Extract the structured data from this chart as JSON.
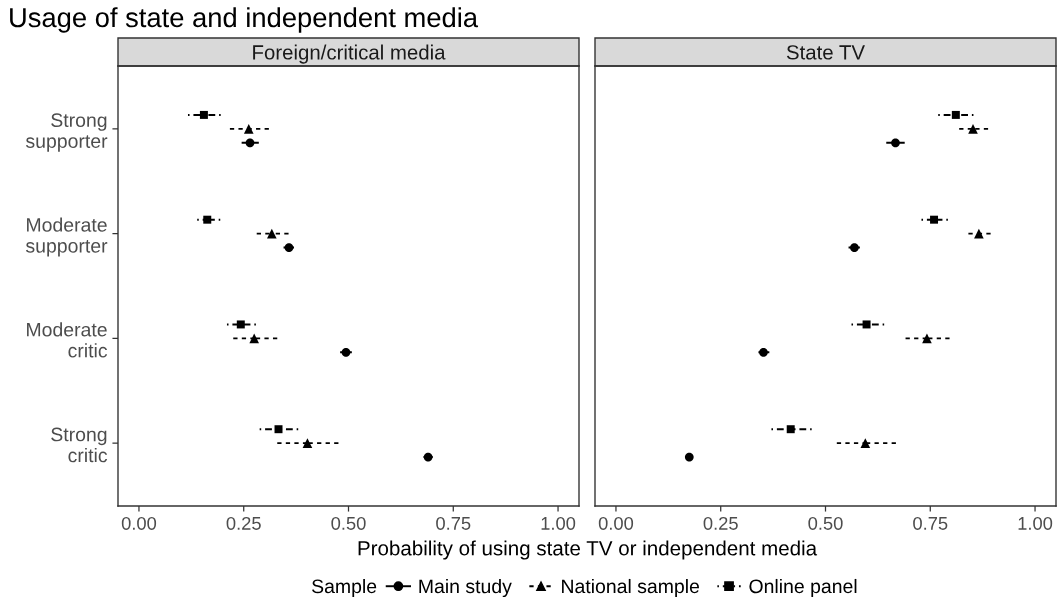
{
  "chart_data": [
    {
      "type": "scatter",
      "orientation": "horizontal",
      "title": "Usage of state and independent media",
      "subtitle": "Foreign/critical media",
      "xlabel": "Probability of using state TV or independent media",
      "legend_title": "Sample",
      "legend": "bottom",
      "categories": [
        "Strong\nsupporter",
        "Moderate\nsupporter",
        "Moderate\ncritic",
        "Strong\ncritic"
      ],
      "xlim": [
        -0.05,
        1.05
      ],
      "xticks": [
        {
          "value": 0,
          "label": "0.00"
        },
        {
          "value": 0.25,
          "label": "0.25"
        },
        {
          "value": 0.5,
          "label": "0.50"
        },
        {
          "value": 0.75,
          "label": "0.75"
        },
        {
          "value": 1,
          "label": "1.00"
        }
      ],
      "series": [
        {
          "name": "Main study",
          "color": "#000000",
          "marker": "circle",
          "line_style": "solid",
          "values": [
            0.265,
            0.358,
            0.494,
            0.69
          ],
          "errors": [
            [
              0.245,
              0.286
            ],
            [
              0.345,
              0.37
            ],
            [
              0.48,
              0.508
            ],
            [
              0.679,
              0.701
            ]
          ]
        },
        {
          "name": "National sample",
          "color": "#000000",
          "marker": "triangle",
          "line_style": "dashed",
          "values": [
            0.262,
            0.317,
            0.275,
            0.402
          ],
          "errors": [
            [
              0.217,
              0.31
            ],
            [
              0.281,
              0.357
            ],
            [
              0.225,
              0.33
            ],
            [
              0.33,
              0.476
            ]
          ]
        },
        {
          "name": "Online panel",
          "color": "#000000",
          "marker": "square",
          "line_style": "dashdot",
          "values": [
            0.155,
            0.163,
            0.243,
            0.333
          ],
          "errors": [
            [
              0.117,
              0.195
            ],
            [
              0.139,
              0.194
            ],
            [
              0.21,
              0.279
            ],
            [
              0.288,
              0.38
            ]
          ]
        }
      ]
    },
    {
      "type": "scatter",
      "orientation": "horizontal",
      "subtitle": "State TV",
      "tick_labels": "x",
      "categories": [
        "Strong\nsupporter",
        "Moderate\nsupporter",
        "Moderate\ncritic",
        "Strong\ncritic"
      ],
      "xlim": [
        -0.05,
        1.05
      ],
      "xticks": [
        {
          "value": 0,
          "label": "0.00"
        },
        {
          "value": 0.25,
          "label": "0.25"
        },
        {
          "value": 0.5,
          "label": "0.50"
        },
        {
          "value": 0.75,
          "label": "0.75"
        },
        {
          "value": 1,
          "label": "1.00"
        }
      ],
      "series": [
        {
          "name": "Main study",
          "color": "#000000",
          "marker": "circle",
          "line_style": "solid",
          "values": [
            0.667,
            0.569,
            0.352,
            0.175
          ],
          "errors": [
            [
              0.645,
              0.689
            ],
            [
              0.555,
              0.582
            ],
            [
              0.34,
              0.366
            ],
            null
          ]
        },
        {
          "name": "National sample",
          "color": "#000000",
          "marker": "triangle",
          "line_style": "dashed",
          "values": [
            0.852,
            0.866,
            0.742,
            0.595
          ],
          "errors": [
            [
              0.819,
              0.888
            ],
            [
              0.841,
              0.894
            ],
            [
              0.691,
              0.796
            ],
            [
              0.527,
              0.668
            ]
          ]
        },
        {
          "name": "Online panel",
          "color": "#000000",
          "marker": "square",
          "line_style": "dashdot",
          "values": [
            0.811,
            0.759,
            0.598,
            0.417
          ],
          "errors": [
            [
              0.769,
              0.853
            ],
            [
              0.729,
              0.792
            ],
            [
              0.562,
              0.64
            ],
            [
              0.371,
              0.467
            ]
          ]
        }
      ]
    }
  ]
}
